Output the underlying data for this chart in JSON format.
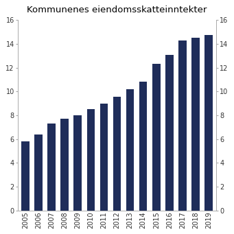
{
  "title": "Kommunenes eiendomsskatteinntekter",
  "years": [
    2005,
    2006,
    2007,
    2008,
    2009,
    2010,
    2011,
    2012,
    2013,
    2014,
    2015,
    2016,
    2017,
    2018,
    2019
  ],
  "values": [
    5.8,
    6.4,
    7.3,
    7.7,
    8.0,
    8.5,
    9.0,
    9.55,
    10.2,
    10.85,
    12.35,
    13.1,
    14.3,
    14.55,
    14.75
  ],
  "bar_color": "#1f2d5a",
  "ylim": [
    0,
    16
  ],
  "yticks": [
    0,
    2,
    4,
    6,
    8,
    10,
    12,
    14,
    16
  ],
  "background_color": "#ffffff",
  "title_fontsize": 9.5,
  "tick_fontsize": 7,
  "bar_width": 0.6
}
